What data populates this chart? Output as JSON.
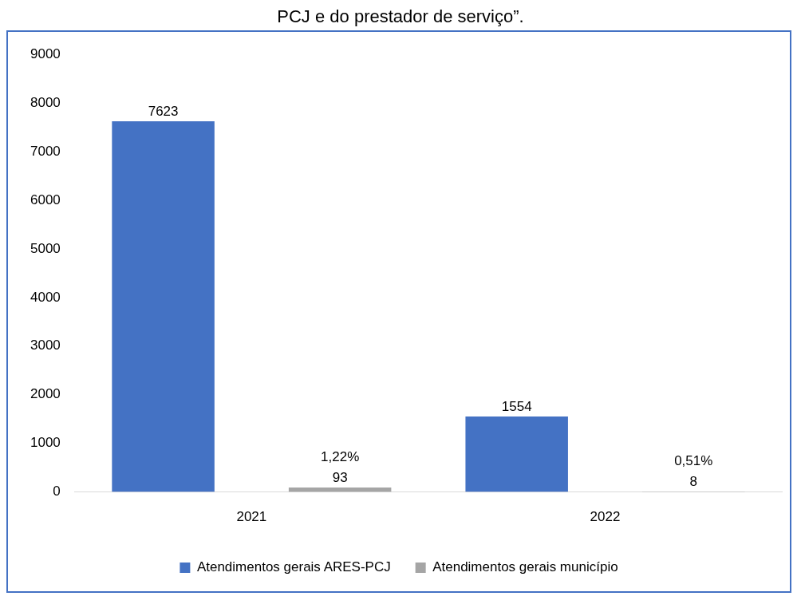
{
  "chart_data": {
    "type": "bar",
    "title": "PCJ e do prestador de serviço”.",
    "categories": [
      "2021",
      "2022"
    ],
    "series": [
      {
        "name": "Atendimentos gerais ARES-PCJ",
        "color": "#4472c4",
        "values": [
          7623,
          1554
        ],
        "value_labels": [
          "7623",
          "1554"
        ]
      },
      {
        "name": "Atendimentos gerais município",
        "color": "#a5a5a5",
        "values": [
          93,
          8
        ],
        "value_labels": [
          "1,22%\n93",
          "0,51%\n8"
        ]
      }
    ],
    "ylim": [
      0,
      9000
    ],
    "yticks": [
      0,
      1000,
      2000,
      3000,
      4000,
      5000,
      6000,
      7000,
      8000,
      9000
    ],
    "grid": false,
    "legend": "bottom"
  }
}
